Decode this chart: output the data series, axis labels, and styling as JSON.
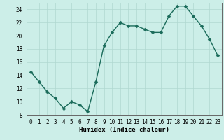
{
  "x": [
    0,
    1,
    2,
    3,
    4,
    5,
    6,
    7,
    8,
    9,
    10,
    11,
    12,
    13,
    14,
    15,
    16,
    17,
    18,
    19,
    20,
    21,
    22,
    23
  ],
  "y": [
    14.5,
    13,
    11.5,
    10.5,
    9,
    10,
    9.5,
    8.5,
    13,
    18.5,
    20.5,
    22,
    21.5,
    21.5,
    21,
    20.5,
    20.5,
    23,
    24.5,
    24.5,
    23,
    21.5,
    19.5,
    17
  ],
  "line_color": "#1a6b5a",
  "marker_color": "#1a6b5a",
  "bg_color": "#cceee8",
  "grid_color": "#b0d8d0",
  "xlabel": "Humidex (Indice chaleur)",
  "xlim": [
    -0.5,
    23.5
  ],
  "ylim": [
    8,
    25
  ],
  "yticks": [
    8,
    10,
    12,
    14,
    16,
    18,
    20,
    22,
    24
  ],
  "xticks": [
    0,
    1,
    2,
    3,
    4,
    5,
    6,
    7,
    8,
    9,
    10,
    11,
    12,
    13,
    14,
    15,
    16,
    17,
    18,
    19,
    20,
    21,
    22,
    23
  ],
  "xlabel_fontsize": 6.5,
  "tick_fontsize": 5.5,
  "linewidth": 1.0,
  "markersize": 2.5,
  "spine_color": "#666666"
}
